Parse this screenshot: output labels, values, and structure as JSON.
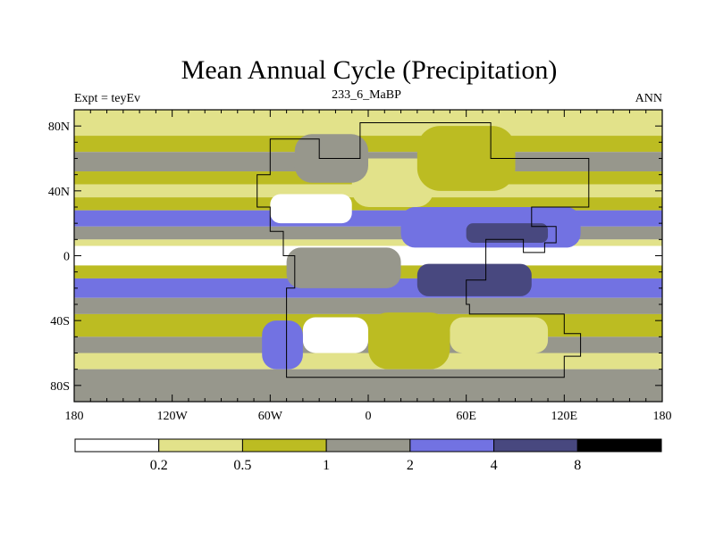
{
  "chart_data": {
    "type": "heatmap",
    "title": "Mean Annual Cycle (Precipitation)",
    "subtitle_left": "Expt = teyEv",
    "subtitle_center": "233_6_MaBP",
    "subtitle_right": "ANN",
    "x_ticks": [
      "180",
      "120W",
      "60W",
      "0",
      "60E",
      "120E",
      "180"
    ],
    "x_values": [
      -180,
      -120,
      -60,
      0,
      60,
      120,
      180
    ],
    "y_ticks": [
      "80N",
      "40N",
      "0",
      "40S",
      "80S"
    ],
    "y_values": [
      80,
      40,
      0,
      -40,
      -80
    ],
    "xlim": [
      -180,
      180
    ],
    "ylim": [
      -90,
      90
    ],
    "colorbar": {
      "levels": [
        "0.2",
        "0.5",
        "1",
        "2",
        "4",
        "8"
      ],
      "colors": [
        "#ffffff",
        "#e2e28a",
        "#bcbc22",
        "#97978c",
        "#7272e2",
        "#48487f",
        "#000000"
      ]
    },
    "lat_bands": [
      {
        "lat": [
          90,
          74
        ],
        "bin": 1
      },
      {
        "lat": [
          74,
          64
        ],
        "bin": 2
      },
      {
        "lat": [
          64,
          52
        ],
        "bin": 3
      },
      {
        "lat": [
          52,
          44
        ],
        "bin": 2
      },
      {
        "lat": [
          44,
          36
        ],
        "bin": 1
      },
      {
        "lat": [
          36,
          28
        ],
        "bin": 2
      },
      {
        "lat": [
          28,
          18
        ],
        "bin": 4
      },
      {
        "lat": [
          18,
          10
        ],
        "bin": 3
      },
      {
        "lat": [
          10,
          6
        ],
        "bin": 1
      },
      {
        "lat": [
          6,
          -6
        ],
        "bin": 0
      },
      {
        "lat": [
          -6,
          -14
        ],
        "bin": 2
      },
      {
        "lat": [
          -14,
          -26
        ],
        "bin": 4
      },
      {
        "lat": [
          -26,
          -36
        ],
        "bin": 3
      },
      {
        "lat": [
          -36,
          -50
        ],
        "bin": 2
      },
      {
        "lat": [
          -50,
          -60
        ],
        "bin": 3
      },
      {
        "lat": [
          -60,
          -70
        ],
        "bin": 1
      },
      {
        "lat": [
          -70,
          -90
        ],
        "bin": 3
      }
    ],
    "regions": [
      {
        "name": "north-landmass-dry",
        "bin": 0,
        "lon": [
          -60,
          -10
        ],
        "lat": [
          38,
          20
        ]
      },
      {
        "name": "north-landmass-moderate",
        "bin": 1,
        "lon": [
          -10,
          40
        ],
        "lat": [
          60,
          30
        ]
      },
      {
        "name": "north-landmass-central",
        "bin": 3,
        "lon": [
          -45,
          0
        ],
        "lat": [
          75,
          45
        ]
      },
      {
        "name": "northeast-highlands",
        "bin": 2,
        "lon": [
          30,
          90
        ],
        "lat": [
          80,
          40
        ]
      },
      {
        "name": "tropical-wet-belt",
        "bin": 4,
        "lon": [
          20,
          130
        ],
        "lat": [
          30,
          5
        ]
      },
      {
        "name": "tropical-core",
        "bin": 5,
        "lon": [
          60,
          110
        ],
        "lat": [
          20,
          8
        ]
      },
      {
        "name": "equatorial-western",
        "bin": 3,
        "lon": [
          -50,
          20
        ],
        "lat": [
          5,
          -20
        ]
      },
      {
        "name": "southern-wet-belt",
        "bin": 5,
        "lon": [
          30,
          100
        ],
        "lat": [
          -5,
          -25
        ]
      },
      {
        "name": "south-landmass-dry",
        "bin": 0,
        "lon": [
          -40,
          0
        ],
        "lat": [
          -38,
          -60
        ]
      },
      {
        "name": "south-landmass-east",
        "bin": 1,
        "lon": [
          50,
          110
        ],
        "lat": [
          -38,
          -60
        ]
      },
      {
        "name": "south-landmass-center",
        "bin": 2,
        "lon": [
          0,
          50
        ],
        "lat": [
          -35,
          -70
        ]
      },
      {
        "name": "southwest-wet",
        "bin": 4,
        "lon": [
          -65,
          -40
        ],
        "lat": [
          -40,
          -70
        ]
      }
    ],
    "coast_outline": [
      [
        -60,
        72
      ],
      [
        -30,
        72
      ],
      [
        -30,
        60
      ],
      [
        -5,
        60
      ],
      [
        -5,
        82
      ],
      [
        75,
        82
      ],
      [
        75,
        60
      ],
      [
        135,
        60
      ],
      [
        135,
        30
      ],
      [
        100,
        30
      ],
      [
        100,
        18
      ],
      [
        115,
        18
      ],
      [
        115,
        8
      ],
      [
        108,
        8
      ],
      [
        108,
        2
      ],
      [
        95,
        2
      ],
      [
        95,
        10
      ],
      [
        72,
        10
      ],
      [
        72,
        -15
      ],
      [
        60,
        -15
      ],
      [
        60,
        -30
      ],
      [
        62,
        -30
      ],
      [
        62,
        -36
      ],
      [
        120,
        -36
      ],
      [
        120,
        -48
      ],
      [
        130,
        -48
      ],
      [
        130,
        -62
      ],
      [
        120,
        -62
      ],
      [
        120,
        -75
      ],
      [
        -50,
        -75
      ],
      [
        -50,
        -20
      ],
      [
        -45,
        -20
      ],
      [
        -45,
        0
      ],
      [
        -52,
        0
      ],
      [
        -52,
        15
      ],
      [
        -60,
        15
      ],
      [
        -60,
        30
      ],
      [
        -68,
        30
      ],
      [
        -68,
        50
      ],
      [
        -60,
        50
      ],
      [
        -60,
        72
      ]
    ]
  }
}
